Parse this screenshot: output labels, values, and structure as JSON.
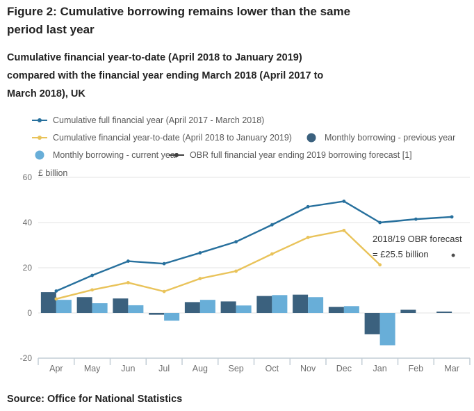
{
  "title": "Figure 2: Cumulative borrowing remains lower than the same period last year",
  "subtitle": "Cumulative financial year-to-date (April 2018 to January 2019) compared with the financial year ending March 2018 (April 2017 to March 2018), UK",
  "source": "Source: Office for National Statistics",
  "colors": {
    "line_previous_year": "#27709d",
    "line_current_year": "#e9c35a",
    "bar_previous_year": "#3b617e",
    "bar_current_year": "#68aed8",
    "obr_forecast": "#4d4d4d",
    "gridline": "#e3e3e3",
    "axis": "#c3ced6",
    "axis_text": "#6e6e6e",
    "legend_text": "#595959"
  },
  "legend": {
    "items": [
      {
        "label": "Cumulative full financial year (April 2017 - March 2018)",
        "marker": "line",
        "color": "#27709d"
      },
      {
        "label": "Cumulative financial year-to-date (April 2018 to January 2019)",
        "marker": "line",
        "color": "#e9c35a"
      },
      {
        "label": "Monthly borrowing - previous year",
        "marker": "circle",
        "color": "#3b617e"
      },
      {
        "label": "Monthly borrowing - current year",
        "marker": "circle",
        "color": "#68aed8"
      },
      {
        "label": "OBR full financial year ending 2019 borrowing forecast [1]",
        "marker": "line",
        "color": "#404040"
      }
    ]
  },
  "chart_data": {
    "type": "combo bar+line",
    "unit_label": "£ billion",
    "categories": [
      "Apr",
      "May",
      "Jun",
      "Jul",
      "Aug",
      "Sep",
      "Oct",
      "Nov",
      "Dec",
      "Jan",
      "Feb",
      "Mar"
    ],
    "ylim": [
      -20,
      60
    ],
    "yticks": [
      60,
      40,
      20,
      0,
      -20
    ],
    "grid": true,
    "legend_position": "top",
    "series": [
      {
        "name": "Cumulative full financial year (April 2017 - March 2018)",
        "type": "line",
        "color": "#27709d",
        "values": [
          9.7,
          16.6,
          22.9,
          21.8,
          26.6,
          31.5,
          39.0,
          47.0,
          49.4,
          40.0,
          41.5,
          42.5
        ]
      },
      {
        "name": "Cumulative financial year-to-date (April 2018 to January 2019)",
        "type": "line",
        "color": "#e9c35a",
        "values": [
          6.2,
          10.2,
          13.4,
          9.5,
          15.2,
          18.5,
          26.1,
          33.4,
          36.5,
          21.3,
          null,
          null
        ]
      },
      {
        "name": "Monthly borrowing - previous year",
        "type": "bar",
        "color": "#3b617e",
        "values": [
          9.2,
          7.0,
          6.4,
          -0.8,
          4.8,
          5.1,
          7.5,
          8.1,
          2.7,
          -9.4,
          1.4,
          0.6
        ]
      },
      {
        "name": "Monthly borrowing - current year",
        "type": "bar",
        "color": "#68aed8",
        "values": [
          5.8,
          4.3,
          3.4,
          -3.4,
          5.8,
          3.3,
          7.9,
          7.0,
          3.0,
          -14.3,
          null,
          null
        ]
      },
      {
        "name": "OBR full financial year ending 2019 borrowing forecast [1]",
        "type": "point",
        "color": "#4d4d4d",
        "category": "Mar",
        "value": 25.5
      }
    ],
    "annotation": {
      "lines": [
        "2018/19 OBR forecast",
        "= £25.5 billion"
      ]
    }
  }
}
